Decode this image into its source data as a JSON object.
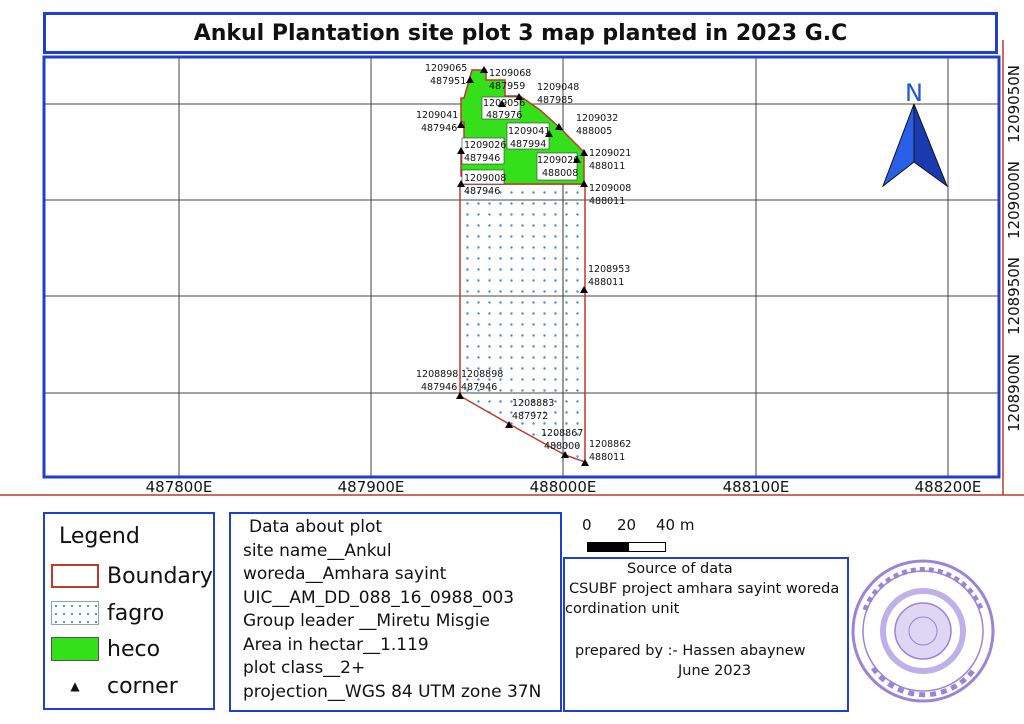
{
  "title": "Ankul Plantation site plot 3 map planted in 2023 G.C",
  "grid": {
    "easting_labels": [
      "487800E",
      "487900E",
      "488000E",
      "488100E",
      "488200E"
    ],
    "northing_labels": [
      "1209050N",
      "1209000N",
      "1208950N",
      "1208900N"
    ]
  },
  "north_arrow": {
    "letter": "N",
    "color": "#1f56e0"
  },
  "corner_points": [
    {
      "n": "1209065",
      "e": "487951"
    },
    {
      "n": "1209068",
      "e": "487959"
    },
    {
      "n": "1209048",
      "e": "487985"
    },
    {
      "n": "1209056",
      "e": "487976"
    },
    {
      "n": "1209041",
      "e": "487946"
    },
    {
      "n": "1209032",
      "e": "488005"
    },
    {
      "n": "1209041",
      "e": "487994"
    },
    {
      "n": "1209026",
      "e": "487946"
    },
    {
      "n": "1209021",
      "e": "488011"
    },
    {
      "n": "1209026",
      "e": "488008"
    },
    {
      "n": "1209008",
      "e": "487946"
    },
    {
      "n": "1209008",
      "e": "488011"
    },
    {
      "n": "1208953",
      "e": "488011"
    },
    {
      "n": "1208898",
      "e": "487946"
    },
    {
      "n": "1208898",
      "e": "487946"
    },
    {
      "n": "1208883",
      "e": "487972"
    },
    {
      "n": "1208867",
      "e": "488000"
    },
    {
      "n": "1208862",
      "e": "488011"
    }
  ],
  "legend": {
    "title": "Legend",
    "items": [
      {
        "label": "Boundary",
        "icon": "boundary-swatch"
      },
      {
        "label": "fagro",
        "icon": "dotted-pattern-swatch"
      },
      {
        "label": "heco",
        "icon": "green-fill-swatch"
      },
      {
        "label": "corner",
        "icon": "triangle-marker"
      }
    ],
    "colors": {
      "boundary": "#c0392b",
      "fagro_dots": "#3a8fd8",
      "heco": "#33e01a"
    }
  },
  "plot_info": {
    "heading": "Data about plot",
    "site_name": "site name__Ankul",
    "woreda": "woreda__Amhara sayint",
    "uic": "UIC__AM_DD_088_16_0988_003",
    "group_leader": "Group leader __Miretu Misgie",
    "area": "Area in hectar__1.119",
    "plot_class": "plot class__2+",
    "projection": "projection__WGS 84 UTM zone 37N"
  },
  "scale_bar": {
    "labels": [
      "0",
      "20",
      "40 m"
    ]
  },
  "source": {
    "heading": "Source of data",
    "line1": "CSUBF project amhara sayint woreda",
    "line2": "cordination unit",
    "prepared_by": "prepared by :- Hassen abaynew",
    "date": "June 2023"
  },
  "stamp": {
    "text": "ሰሜን ወሎ ብሔረሰብ ... ጽ/ቤት",
    "color": "#8a6fd0"
  },
  "colors": {
    "frame": "#1f3fd0",
    "grid": "#444444"
  }
}
